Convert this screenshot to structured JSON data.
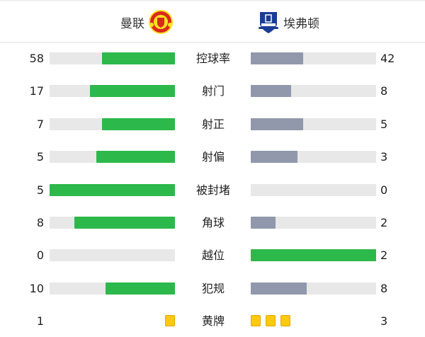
{
  "header": {
    "home_team": "曼联",
    "away_team": "埃弗顿",
    "home_logo": "manchester-united-crest",
    "away_logo": "everton-crest"
  },
  "colors": {
    "home_bar": "#2db84b",
    "away_bar": "#9198ab",
    "away_highlight": "#2db84b",
    "track": "#e8e8e8",
    "yellow_card": "#ffc90e"
  },
  "stats": [
    {
      "label": "控球率",
      "home": "58",
      "away": "42"
    },
    {
      "label": "射门",
      "home": "17",
      "away": "8"
    },
    {
      "label": "射正",
      "home": "7",
      "away": "5"
    },
    {
      "label": "射偏",
      "home": "5",
      "away": "3"
    },
    {
      "label": "被封堵",
      "home": "5",
      "away": "0"
    },
    {
      "label": "角球",
      "home": "8",
      "away": "2"
    },
    {
      "label": "越位",
      "home": "0",
      "away": "2"
    },
    {
      "label": "犯规",
      "home": "10",
      "away": "8"
    }
  ],
  "yellow_cards": {
    "label": "黄牌",
    "home": "1",
    "away": "3"
  }
}
